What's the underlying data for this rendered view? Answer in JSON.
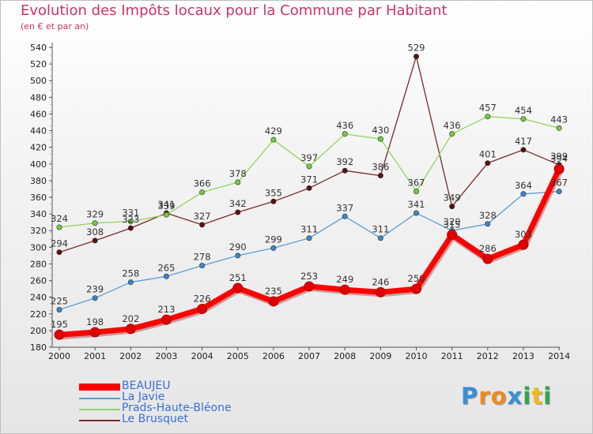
{
  "title": "Evolution des Impôts locaux pour la Commune par Habitant",
  "subtitle": "(en € et par an)",
  "logo": {
    "text": "Proxiti",
    "letter_colors": [
      "#3a8fd8",
      "#f08a1c",
      "#f08a1c",
      "#3a8fd8",
      "#2ca84a",
      "#f0b81c",
      "#2ca84a"
    ]
  },
  "chart_data": {
    "type": "line",
    "x": [
      "2000",
      "2001",
      "2002",
      "2003",
      "2004",
      "2005",
      "2006",
      "2007",
      "2008",
      "2009",
      "2010",
      "2011",
      "2012",
      "2013",
      "2014"
    ],
    "ylim": [
      180,
      540
    ],
    "yticks": [
      180,
      200,
      220,
      240,
      260,
      280,
      300,
      320,
      340,
      360,
      380,
      400,
      420,
      440,
      460,
      480,
      500,
      520,
      540
    ],
    "grid": false,
    "legend_position": "bottom-left",
    "series": [
      {
        "name": "Le Brusquet",
        "color": "#7a2a2a",
        "marker": "#5a0f0f",
        "values": [
          294,
          308,
          323,
          341,
          327,
          342,
          355,
          371,
          392,
          386,
          529,
          349,
          401,
          417,
          399
        ]
      },
      {
        "name": "Prads-Haute-Bléone",
        "color": "#8fd65a",
        "marker": "#6fcf3a",
        "values": [
          324,
          329,
          331,
          339,
          366,
          378,
          429,
          397,
          436,
          430,
          367,
          436,
          457,
          454,
          443
        ]
      },
      {
        "name": "La Javie",
        "color": "#5a9fd4",
        "marker": "#3b86c8",
        "values": [
          225,
          239,
          258,
          265,
          278,
          290,
          299,
          311,
          337,
          311,
          341,
          320,
          328,
          364,
          367
        ]
      },
      {
        "name": "BEAUJEU",
        "color": "#ff0000",
        "marker": "#e00000",
        "values": [
          195,
          198,
          202,
          213,
          226,
          251,
          235,
          253,
          249,
          246,
          250,
          315,
          286,
          303,
          394
        ]
      }
    ],
    "point_labels": {
      "Le Brusquet": [
        "294",
        "308",
        "323",
        "341",
        "327",
        "342",
        "355",
        "371",
        "392",
        "386",
        "529",
        "349",
        "401",
        "417",
        "399"
      ],
      "Prads-Haute-Bléone": [
        "324",
        "329",
        "331",
        "339",
        "366",
        "378",
        "429",
        "397",
        "436",
        "430",
        "367",
        "436",
        "457",
        "454",
        "443"
      ],
      "La Javie": [
        "225",
        "239",
        "258",
        "265",
        "278",
        "290",
        "299",
        "311",
        "337",
        "311",
        "341",
        "320",
        "328",
        "364",
        "367"
      ],
      "BEAUJEU": [
        "195",
        "198",
        "202",
        "213",
        "226",
        "251",
        "235",
        "253",
        "249",
        "246",
        "250",
        "315",
        "286",
        "303",
        "394"
      ]
    },
    "legend": [
      "BEAUJEU",
      "La Javie",
      "Prads-Haute-Bléone",
      "Le Brusquet"
    ]
  }
}
